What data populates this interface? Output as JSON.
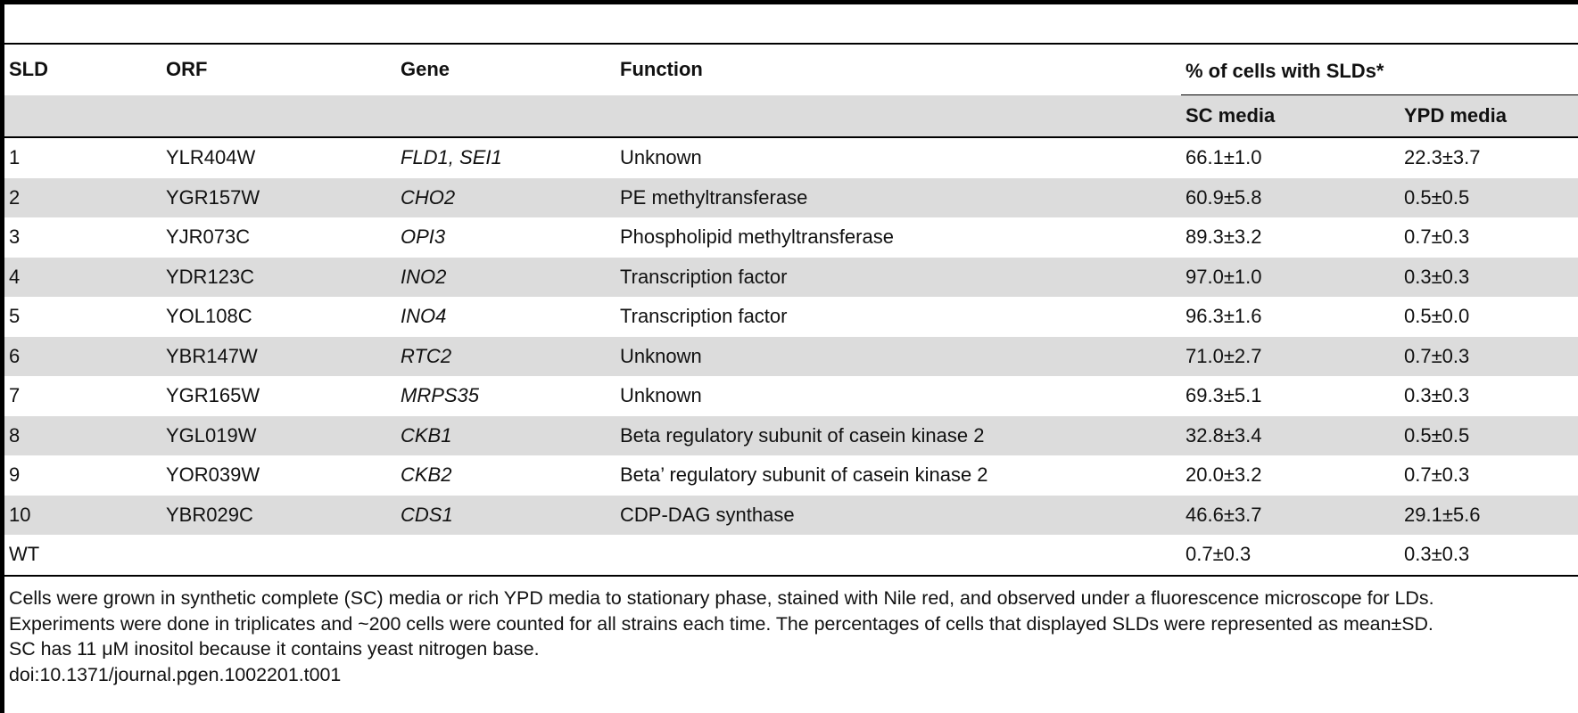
{
  "table": {
    "headers": {
      "sld": "SLD",
      "orf": "ORF",
      "gene": "Gene",
      "function": "Function",
      "pct_group": "% of cells with SLDs*",
      "sc_media": "SC media",
      "ypd_media": "YPD media"
    },
    "rows": [
      {
        "sld": "1",
        "orf": "YLR404W",
        "gene": "FLD1, SEI1",
        "function": "Unknown",
        "sc": "66.1±1.0",
        "ypd": "22.3±3.7"
      },
      {
        "sld": "2",
        "orf": "YGR157W",
        "gene": "CHO2",
        "function": "PE methyltransferase",
        "sc": "60.9±5.8",
        "ypd": "0.5±0.5"
      },
      {
        "sld": "3",
        "orf": "YJR073C",
        "gene": "OPI3",
        "function": "Phospholipid methyltransferase",
        "sc": "89.3±3.2",
        "ypd": "0.7±0.3"
      },
      {
        "sld": "4",
        "orf": "YDR123C",
        "gene": "INO2",
        "function": "Transcription factor",
        "sc": "97.0±1.0",
        "ypd": "0.3±0.3"
      },
      {
        "sld": "5",
        "orf": "YOL108C",
        "gene": "INO4",
        "function": "Transcription factor",
        "sc": "96.3±1.6",
        "ypd": "0.5±0.0"
      },
      {
        "sld": "6",
        "orf": "YBR147W",
        "gene": "RTC2",
        "function": "Unknown",
        "sc": "71.0±2.7",
        "ypd": "0.7±0.3"
      },
      {
        "sld": "7",
        "orf": "YGR165W",
        "gene": "MRPS35",
        "function": "Unknown",
        "sc": "69.3±5.1",
        "ypd": "0.3±0.3"
      },
      {
        "sld": "8",
        "orf": "YGL019W",
        "gene": "CKB1",
        "function": "Beta regulatory subunit of casein kinase 2",
        "sc": "32.8±3.4",
        "ypd": "0.5±0.5"
      },
      {
        "sld": "9",
        "orf": "YOR039W",
        "gene": "CKB2",
        "function": "Beta’ regulatory subunit of casein kinase 2",
        "sc": "20.0±3.2",
        "ypd": "0.7±0.3"
      },
      {
        "sld": "10",
        "orf": "YBR029C",
        "gene": "CDS1",
        "function": "CDP-DAG synthase",
        "sc": "46.6±3.7",
        "ypd": "29.1±5.6"
      },
      {
        "sld": "WT",
        "orf": "",
        "gene": "",
        "function": "",
        "sc": "0.7±0.3",
        "ypd": "0.3±0.3"
      }
    ]
  },
  "footnote": {
    "lines": [
      "Cells were grown in synthetic complete (SC) media or rich YPD media to stationary phase, stained with Nile red, and observed under a fluorescence microscope for LDs.",
      "Experiments were done in triplicates and ~200 cells were counted for all strains each time. The percentages of cells that displayed SLDs were represented as mean±SD.",
      "SC has 11 μM inositol because it contains yeast nitrogen base.",
      "doi:10.1371/journal.pgen.1002201.t001"
    ]
  },
  "colors": {
    "shade": "#dcdcdc",
    "rule": "#000000"
  }
}
